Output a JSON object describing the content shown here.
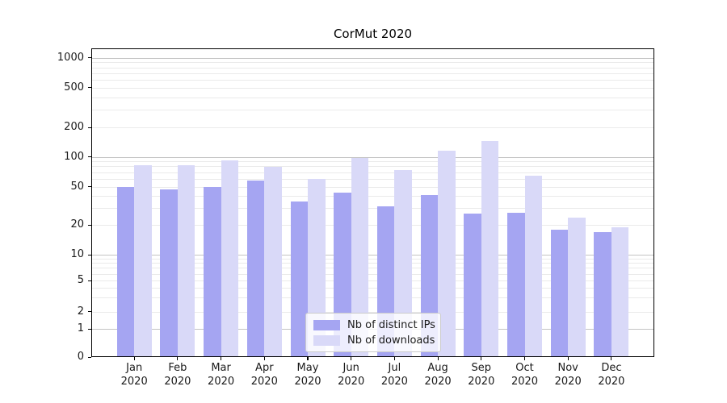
{
  "title": "CorMut 2020",
  "axes": {
    "y_tick_labels": [
      "0",
      "1",
      "2",
      "5",
      "10",
      "20",
      "50",
      "100",
      "200",
      "500",
      "1000"
    ],
    "x_tick_months": [
      "Jan",
      "Feb",
      "Mar",
      "Apr",
      "May",
      "Jun",
      "Jul",
      "Aug",
      "Sep",
      "Oct",
      "Nov",
      "Dec"
    ],
    "x_tick_year": "2020"
  },
  "legend": {
    "ips_label": "Nb of distinct IPs",
    "downloads_label": "Nb of downloads"
  },
  "colors": {
    "ips": "#a5a5f2",
    "downloads": "#d9d9f8",
    "major_grid": "#c3c3c3",
    "minor_grid": "#eaeaea",
    "spine": "#000000"
  },
  "chart_data": {
    "type": "bar",
    "title": "CorMut 2020",
    "categories": [
      "Jan 2020",
      "Feb 2020",
      "Mar 2020",
      "Apr 2020",
      "May 2020",
      "Jun 2020",
      "Jul 2020",
      "Aug 2020",
      "Sep 2020",
      "Oct 2020",
      "Nov 2020",
      "Dec 2020"
    ],
    "series": [
      {
        "name": "Nb of distinct IPs",
        "color": "#a5a5f2",
        "values": [
          50,
          47,
          50,
          58,
          35,
          43,
          31,
          41,
          26,
          27,
          18,
          17
        ]
      },
      {
        "name": "Nb of downloads",
        "color": "#d9d9f8",
        "values": [
          82,
          82,
          92,
          79,
          60,
          97,
          73,
          115,
          146,
          64,
          24,
          19
        ]
      }
    ],
    "yscale": "symlog",
    "yticks": [
      0,
      1,
      2,
      5,
      10,
      20,
      50,
      100,
      200,
      500,
      1000
    ],
    "ylim": [
      0,
      1400
    ],
    "grid": "horizontal, major and minor",
    "legend_position": "lower center, inside axes"
  }
}
